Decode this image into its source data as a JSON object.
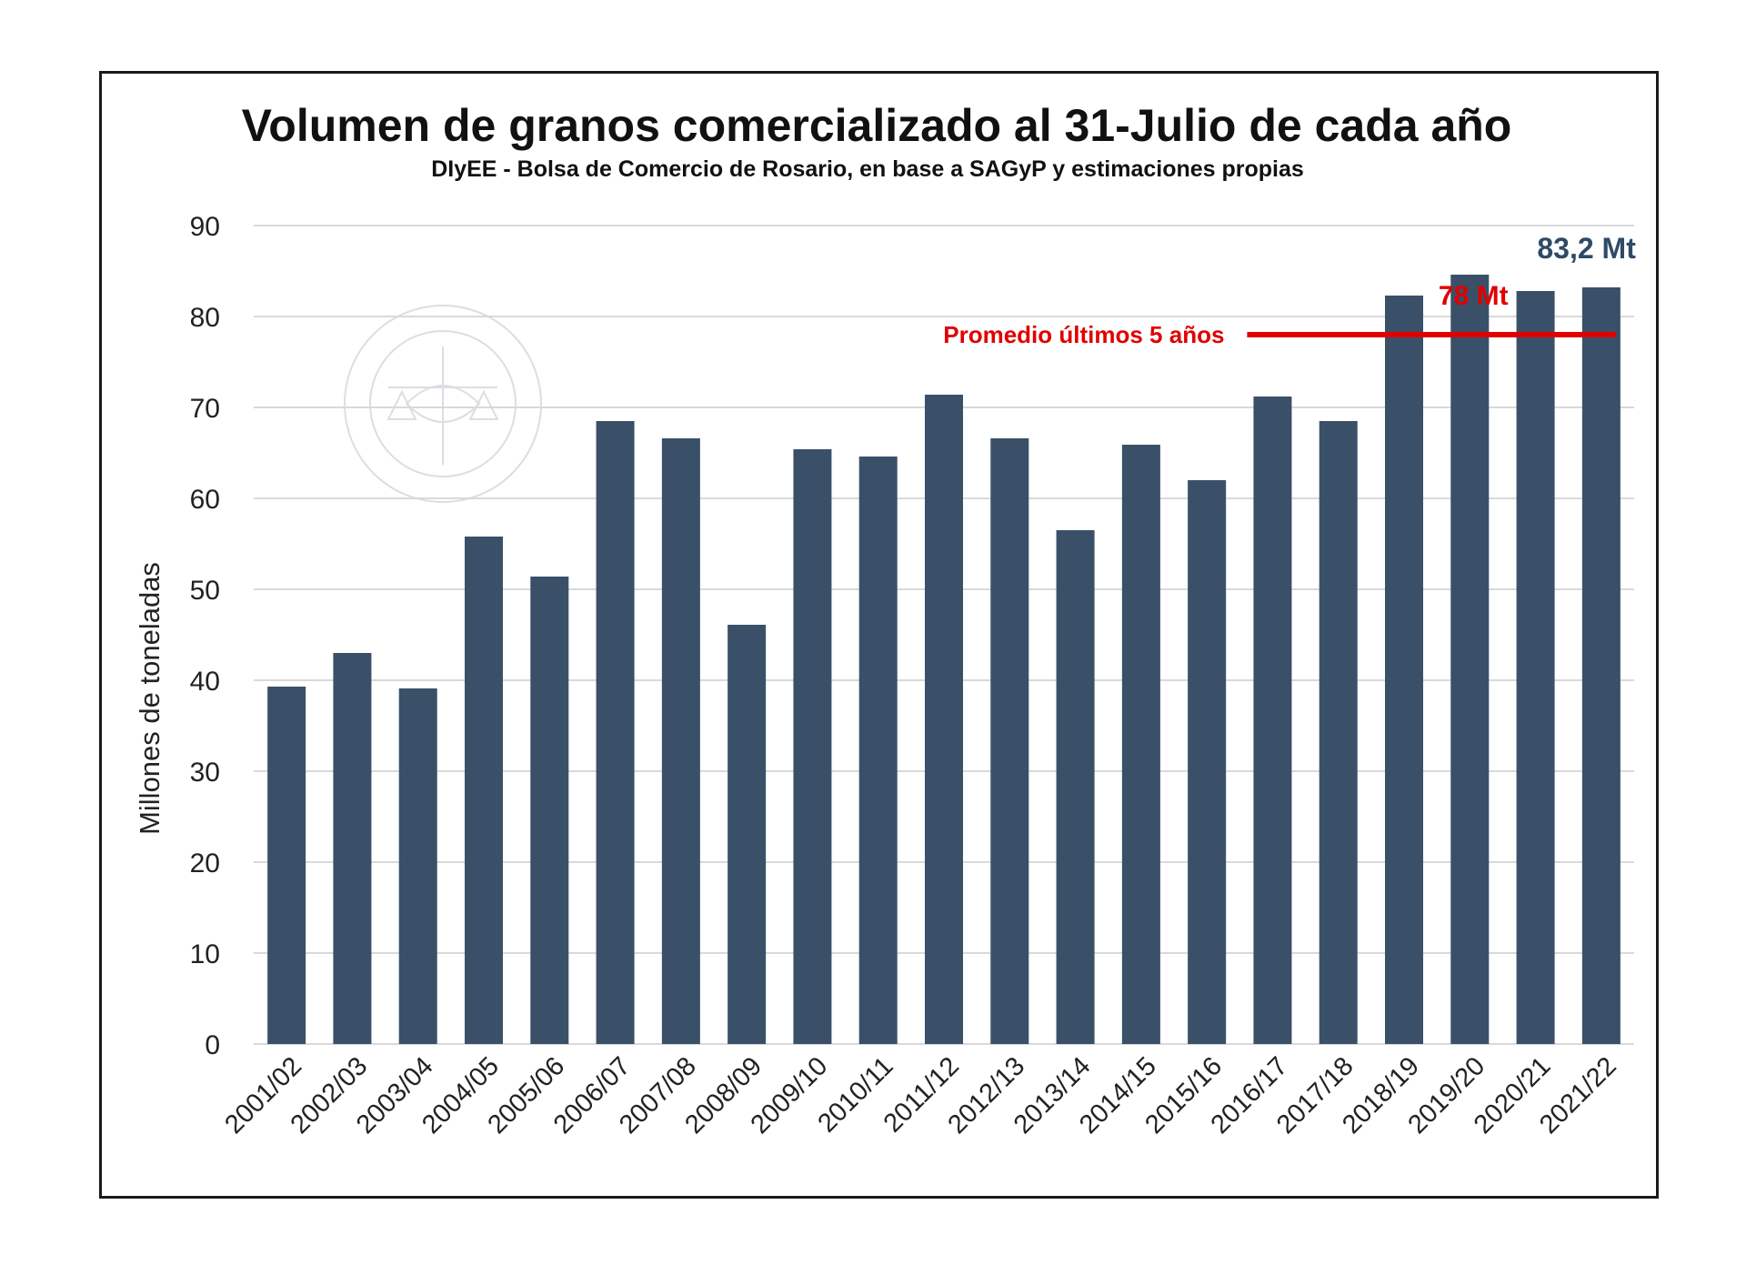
{
  "colors": {
    "bar": "#3a5068",
    "average_line": "#e00000",
    "grid": "#d9d9d9",
    "highlight_label": "#2f4a66"
  },
  "chart_data": {
    "type": "bar",
    "title": "Volumen de granos comercializado al 31-Julio de cada año",
    "subtitle": "DIyEE - Bolsa de Comercio de Rosario, en base a SAGyP y estimaciones propias",
    "xlabel": "",
    "ylabel": "Millones de toneladas",
    "ylim": [
      0,
      90
    ],
    "yticks": [
      0,
      10,
      20,
      30,
      40,
      50,
      60,
      70,
      80,
      90
    ],
    "grid": true,
    "categories": [
      "2001/02",
      "2002/03",
      "2003/04",
      "2004/05",
      "2005/06",
      "2006/07",
      "2007/08",
      "2008/09",
      "2009/10",
      "2010/11",
      "2011/12",
      "2012/13",
      "2013/14",
      "2014/15",
      "2015/16",
      "2016/17",
      "2017/18",
      "2018/19",
      "2019/20",
      "2020/21",
      "2021/22"
    ],
    "values": [
      39.3,
      43.0,
      39.1,
      55.8,
      51.4,
      68.5,
      66.6,
      46.1,
      65.4,
      64.6,
      71.4,
      66.6,
      56.5,
      65.9,
      62.0,
      71.2,
      68.5,
      82.3,
      84.6,
      82.8,
      83.2
    ],
    "average": {
      "label": "Promedio últimos 5 años",
      "value": 78,
      "value_label": "78 Mt",
      "from_category": "2016/17",
      "to_category": "2021/22"
    },
    "highlight": {
      "category": "2021/22",
      "label": "83,2 Mt"
    },
    "watermark": "BOLSA DE COMERCIO DE ROSARIO"
  }
}
